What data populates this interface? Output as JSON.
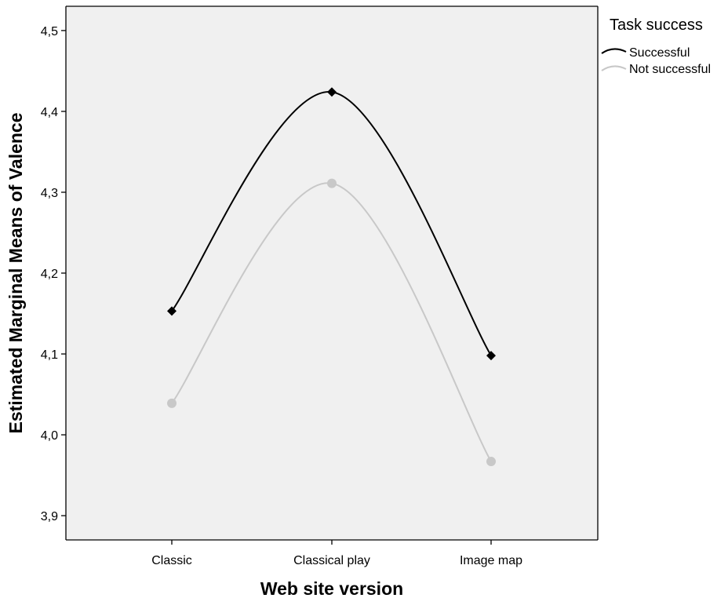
{
  "chart_data": {
    "type": "line",
    "title": "",
    "xlabel": "Web site version",
    "ylabel": "Estimated Marginal Means of Valence",
    "categories": [
      "Classic",
      "Classical play",
      "Image map"
    ],
    "ylim": [
      3.87,
      4.53
    ],
    "yticks": [
      "3,9",
      "4,0",
      "4,1",
      "4,2",
      "4,3",
      "4,4",
      "4,5"
    ],
    "ytick_values": [
      3.9,
      4.0,
      4.1,
      4.2,
      4.3,
      4.4,
      4.5
    ],
    "grid": false,
    "background_color": "#f0f0f0",
    "legend": {
      "title": "Task success",
      "position": "right"
    },
    "series": [
      {
        "name": "Successful",
        "values": [
          4.153,
          4.424,
          4.098
        ],
        "color": "#000000",
        "marker": "diamond"
      },
      {
        "name": "Not successful",
        "values": [
          4.039,
          4.311,
          3.967
        ],
        "color": "#c8c8c8",
        "marker": "circle"
      }
    ]
  }
}
